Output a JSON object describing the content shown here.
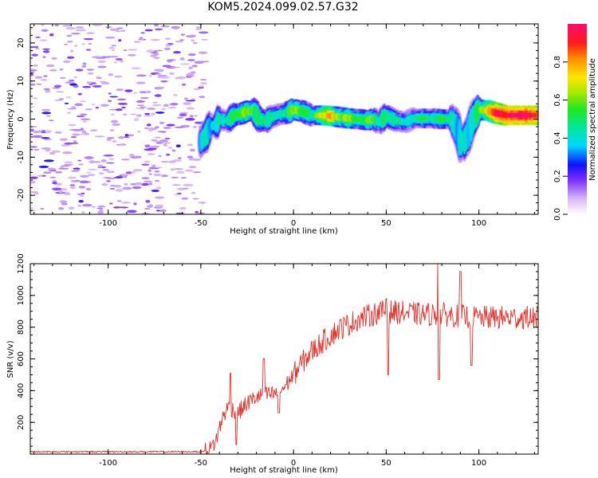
{
  "title": "KOM5.2024.099.02.57.G32",
  "chart_data": [
    {
      "type": "heatmap",
      "xlabel": "Height of straight line (km)",
      "ylabel": "Frequency (Hz)",
      "xlim": [
        -142,
        132
      ],
      "ylim": [
        -25,
        25
      ],
      "xticks": [
        -100,
        -50,
        0,
        50,
        100
      ],
      "yticks": [
        -20,
        -10,
        0,
        10,
        20
      ],
      "colorbar": {
        "label": "Normalized spectral amplitude",
        "range": [
          0.0,
          1.0
        ],
        "ticks": [
          "0.0",
          "0.2",
          "0.4",
          "0.6",
          "0.8"
        ]
      },
      "noise_region_x": [
        -142,
        -48
      ],
      "ridge": {
        "x": [
          -50,
          -47,
          -45,
          -42,
          -40,
          -36,
          -32,
          -28,
          -25,
          -22,
          -18,
          -15,
          -12,
          -8,
          -5,
          -2,
          0,
          5,
          10,
          15,
          20,
          25,
          30,
          35,
          40,
          43,
          46,
          50,
          55,
          60,
          65,
          70,
          75,
          80,
          85,
          88,
          91,
          94,
          97,
          100,
          105,
          110,
          115,
          120,
          125,
          132
        ],
        "y": [
          -6,
          -4,
          -2,
          -1.5,
          0,
          -0.5,
          1,
          1.5,
          2,
          2.2,
          0,
          -0.5,
          0.5,
          1.2,
          1.5,
          2,
          2.5,
          2,
          1,
          1,
          0.8,
          0.5,
          0.2,
          0,
          -0.3,
          0,
          -0.8,
          0.8,
          -0.3,
          -0.8,
          0.2,
          0.2,
          0.2,
          0,
          0,
          -2.5,
          -7,
          -4,
          0,
          2.5,
          2.2,
          1.5,
          1,
          1,
          1,
          1
        ],
        "amplitude": [
          0.3,
          0.4,
          0.3,
          0.35,
          0.4,
          0.35,
          0.45,
          0.5,
          0.55,
          0.5,
          0.4,
          0.45,
          0.4,
          0.35,
          0.4,
          0.5,
          0.55,
          0.5,
          0.4,
          0.6,
          0.75,
          0.5,
          0.6,
          0.45,
          0.5,
          0.5,
          0.35,
          0.45,
          0.4,
          0.35,
          0.35,
          0.5,
          0.4,
          0.5,
          0.4,
          0.3,
          0.35,
          0.3,
          0.35,
          0.5,
          0.65,
          0.85,
          0.9,
          0.95,
          0.95,
          0.85
        ]
      }
    },
    {
      "type": "line",
      "xlabel": "Height of straight line (km)",
      "ylabel": "SNR (v/v)",
      "xlim": [
        -142,
        132
      ],
      "ylim": [
        0,
        1200
      ],
      "xticks": [
        -100,
        -50,
        0,
        50,
        100
      ],
      "yticks": [
        200,
        400,
        600,
        800,
        1000,
        1200
      ],
      "color": "#e8302a",
      "trend": {
        "x": [
          -142,
          -50,
          -45,
          -42,
          -38,
          -35,
          -30,
          -25,
          -20,
          -15,
          -10,
          -5,
          0,
          5,
          10,
          15,
          20,
          25,
          30,
          35,
          40,
          45,
          50,
          60,
          70,
          80,
          90,
          100,
          110,
          120,
          132
        ],
        "y": [
          15,
          15,
          30,
          80,
          240,
          300,
          260,
          320,
          360,
          370,
          380,
          420,
          500,
          580,
          650,
          700,
          750,
          790,
          820,
          850,
          870,
          890,
          900,
          890,
          880,
          880,
          870,
          860,
          860,
          860,
          860
        ]
      },
      "peaks": [
        {
          "x": -34,
          "y": 510
        },
        {
          "x": -31,
          "y": 60
        },
        {
          "x": -16,
          "y": 600
        },
        {
          "x": -8,
          "y": 260
        },
        {
          "x": 50,
          "y": 980
        },
        {
          "x": 51,
          "y": 500
        },
        {
          "x": 78,
          "y": 1200
        },
        {
          "x": 78.5,
          "y": 470
        },
        {
          "x": 90,
          "y": 1150
        },
        {
          "x": 96,
          "y": 560
        }
      ]
    }
  ]
}
